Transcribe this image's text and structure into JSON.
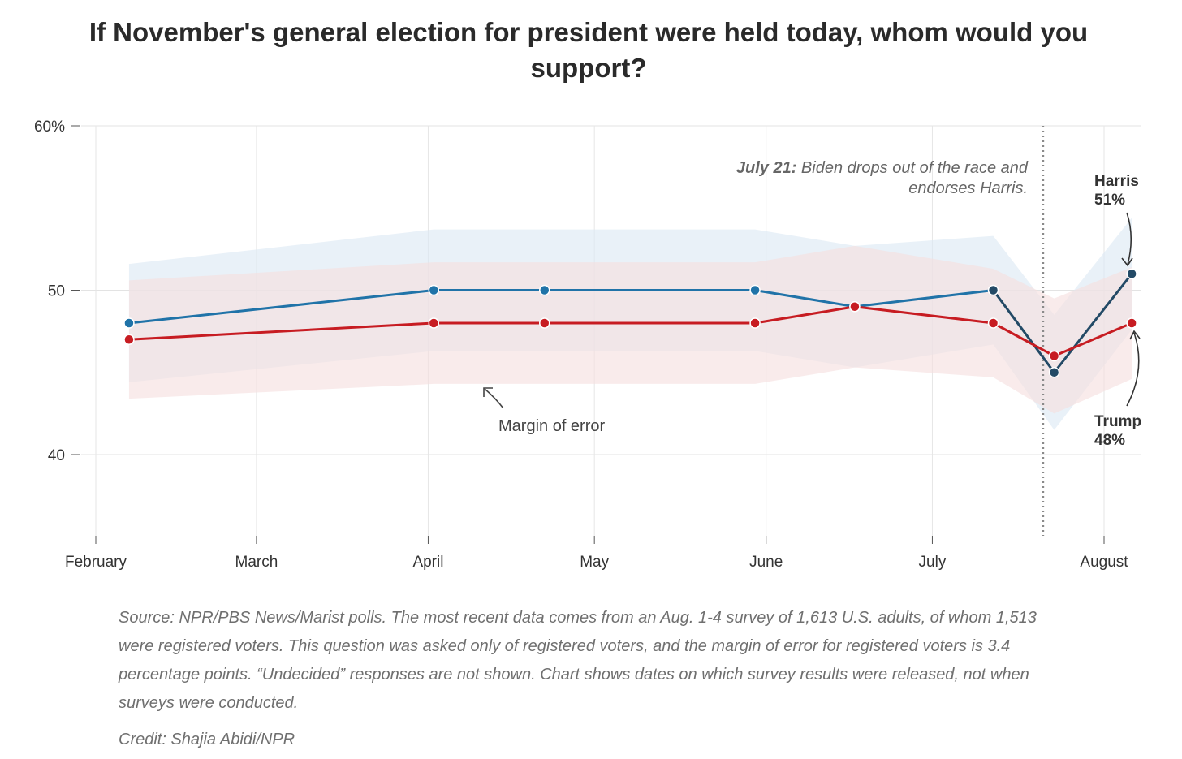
{
  "chart_data": {
    "type": "line",
    "title": "If November's general election for president were held today, whom would you support?",
    "x_axis": {
      "type": "date",
      "range": [
        "2024-02-01",
        "2024-08-12"
      ],
      "ticks": [
        {
          "date": "2024-02-01",
          "label": "February"
        },
        {
          "date": "2024-03-01",
          "label": "March"
        },
        {
          "date": "2024-04-01",
          "label": "April"
        },
        {
          "date": "2024-05-01",
          "label": "May"
        },
        {
          "date": "2024-06-01",
          "label": "June"
        },
        {
          "date": "2024-07-01",
          "label": "July"
        },
        {
          "date": "2024-08-01",
          "label": "August"
        }
      ]
    },
    "y_axis": {
      "range": [
        35,
        60
      ],
      "ticks": [
        {
          "value": 60,
          "label": "60%"
        },
        {
          "value": 50,
          "label": "50"
        },
        {
          "value": 40,
          "label": "40"
        }
      ],
      "grid": true
    },
    "margin_of_error_note": "Margin of error",
    "series": [
      {
        "key": "dem",
        "color": "#2073a8",
        "late_color": "#234a66",
        "band_color": "#dce8f3",
        "points": [
          {
            "date": "2024-02-07",
            "value": 48,
            "moe": 3.6
          },
          {
            "date": "2024-04-02",
            "value": 50,
            "moe": 3.7
          },
          {
            "date": "2024-04-22",
            "value": 50,
            "moe": 3.7
          },
          {
            "date": "2024-05-30",
            "value": 50,
            "moe": 3.7
          },
          {
            "date": "2024-06-17",
            "value": 49,
            "moe": 3.7
          },
          {
            "date": "2024-07-12",
            "value": 50,
            "moe": 3.3
          },
          {
            "date": "2024-07-23",
            "value": 45,
            "moe": 3.5
          },
          {
            "date": "2024-08-06",
            "value": 51,
            "moe": 3.4
          }
        ],
        "late_from_index": 5
      },
      {
        "key": "gop",
        "color": "#c71c22",
        "late_color": "#c71c22",
        "band_color": "#f6dede",
        "points": [
          {
            "date": "2024-02-07",
            "value": 47,
            "moe": 3.6
          },
          {
            "date": "2024-04-02",
            "value": 48,
            "moe": 3.7
          },
          {
            "date": "2024-04-22",
            "value": 48,
            "moe": 3.7
          },
          {
            "date": "2024-05-30",
            "value": 48,
            "moe": 3.7
          },
          {
            "date": "2024-06-17",
            "value": 49,
            "moe": 3.7
          },
          {
            "date": "2024-07-12",
            "value": 48,
            "moe": 3.3
          },
          {
            "date": "2024-07-23",
            "value": 46,
            "moe": 3.5
          },
          {
            "date": "2024-08-06",
            "value": 48,
            "moe": 3.4
          }
        ],
        "late_from_index": 99
      }
    ],
    "end_labels": [
      {
        "series": "dem",
        "name": "Harris",
        "value_label": "51%"
      },
      {
        "series": "gop",
        "name": "Trump",
        "value_label": "48%"
      }
    ],
    "annotation": {
      "date": "2024-07-21",
      "bold": "July 21:",
      "line1": " Biden drops out of the race and",
      "line2": "endorses Harris."
    },
    "source": "Source: NPR/PBS News/Marist polls. The most recent data comes from an Aug. 1-4 survey of 1,613 U.S. adults, of whom 1,513 were registered voters. This question was asked only of registered voters, and the margin of error for registered voters is 3.4 percentage points. “Undecided” responses are not shown. Chart shows dates on which survey results were released, not when surveys were conducted.",
    "credit": "Credit: Shajia Abidi/NPR"
  }
}
